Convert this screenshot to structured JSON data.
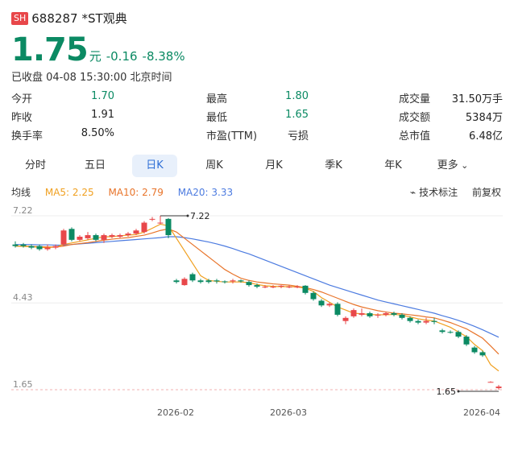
{
  "header": {
    "exchange": "SH",
    "code": "688287",
    "name": "*ST观典"
  },
  "quote": {
    "price": "1.75",
    "unit": "元",
    "change": "-0.16",
    "change_pct": "-8.38%",
    "status": "已收盘 04-08 15:30:00 北京时间"
  },
  "stats": [
    [
      {
        "label": "今开",
        "value": "1.70",
        "color": "green"
      },
      {
        "label": "最高",
        "value": "1.80",
        "color": "green"
      },
      {
        "label": "成交量",
        "value": "31.50万手",
        "color": "dark"
      }
    ],
    [
      {
        "label": "昨收",
        "value": "1.91",
        "color": "dark"
      },
      {
        "label": "最低",
        "value": "1.65",
        "color": "green"
      },
      {
        "label": "成交额",
        "value": "5384万",
        "color": "dark"
      }
    ],
    [
      {
        "label": "换手率",
        "value": "8.50%",
        "color": "dark"
      },
      {
        "label": "市盈(TTM)",
        "value": "亏损",
        "color": "dark"
      },
      {
        "label": "总市值",
        "value": "6.48亿",
        "color": "dark"
      }
    ]
  ],
  "tabs": [
    "分时",
    "五日",
    "日K",
    "周K",
    "月K",
    "季K",
    "年K",
    "更多"
  ],
  "active_tab": "日K",
  "ma": {
    "title": "均线",
    "ma5": "MA5: 2.25",
    "ma10": "MA10: 2.79",
    "ma20": "MA20: 3.33"
  },
  "tools": {
    "tech": "技术标注",
    "adjust": "前复权"
  },
  "colors": {
    "up": "#e8474a",
    "down": "#0b8a63",
    "ma5": "#f0a020",
    "ma10": "#e8742a",
    "ma20": "#4c7be0"
  },
  "chart_data": {
    "type": "candlestick",
    "y_ticks": [
      "7.22",
      "4.43",
      "1.65"
    ],
    "ylim": [
      1.65,
      7.22
    ],
    "x_ticks": [
      "2026-02",
      "2026-03",
      "2026-04"
    ],
    "high_label": "7.22",
    "low_label": "1.65",
    "candles": [
      {
        "o": 6.3,
        "c": 6.25,
        "h": 6.4,
        "l": 6.2
      },
      {
        "o": 6.3,
        "c": 6.25,
        "h": 6.35,
        "l": 6.2
      },
      {
        "o": 6.25,
        "c": 6.2,
        "h": 6.3,
        "l": 6.15
      },
      {
        "o": 6.25,
        "c": 6.15,
        "h": 6.3,
        "l": 6.1
      },
      {
        "o": 6.15,
        "c": 6.2,
        "h": 6.3,
        "l": 6.1
      },
      {
        "o": 6.2,
        "c": 6.25,
        "h": 6.3,
        "l": 6.15
      },
      {
        "o": 6.3,
        "c": 6.75,
        "h": 6.8,
        "l": 6.25
      },
      {
        "o": 6.8,
        "c": 6.45,
        "h": 6.85,
        "l": 6.4
      },
      {
        "o": 6.45,
        "c": 6.55,
        "h": 6.6,
        "l": 6.4
      },
      {
        "o": 6.5,
        "c": 6.6,
        "h": 6.7,
        "l": 6.45
      },
      {
        "o": 6.6,
        "c": 6.45,
        "h": 6.65,
        "l": 6.4
      },
      {
        "o": 6.45,
        "c": 6.6,
        "h": 6.65,
        "l": 6.35
      },
      {
        "o": 6.55,
        "c": 6.6,
        "h": 6.65,
        "l": 6.5
      },
      {
        "o": 6.55,
        "c": 6.6,
        "h": 6.65,
        "l": 6.5
      },
      {
        "o": 6.6,
        "c": 6.65,
        "h": 6.7,
        "l": 6.55
      },
      {
        "o": 6.65,
        "c": 6.75,
        "h": 6.8,
        "l": 6.6
      },
      {
        "o": 6.7,
        "c": 7.0,
        "h": 7.05,
        "l": 6.65
      },
      {
        "o": 7.1,
        "c": 7.12,
        "h": 7.18,
        "l": 7.05
      },
      {
        "o": 7.0,
        "c": 7.0,
        "h": 7.22,
        "l": 6.95
      },
      {
        "o": 7.12,
        "c": 6.6,
        "h": 7.15,
        "l": 6.5
      },
      {
        "o": 5.15,
        "c": 5.1,
        "h": 5.2,
        "l": 5.05
      },
      {
        "o": 5.0,
        "c": 5.2,
        "h": 5.25,
        "l": 4.98
      },
      {
        "o": 5.35,
        "c": 5.15,
        "h": 5.4,
        "l": 5.1
      },
      {
        "o": 5.15,
        "c": 5.1,
        "h": 5.2,
        "l": 5.05
      },
      {
        "o": 5.15,
        "c": 5.1,
        "h": 5.2,
        "l": 5.05
      },
      {
        "o": 5.15,
        "c": 5.12,
        "h": 5.2,
        "l": 5.05
      },
      {
        "o": 5.12,
        "c": 5.1,
        "h": 5.15,
        "l": 5.05
      },
      {
        "o": 5.12,
        "c": 5.15,
        "h": 5.2,
        "l": 5.05
      },
      {
        "o": 5.15,
        "c": 5.12,
        "h": 5.18,
        "l": 5.08
      },
      {
        "o": 5.1,
        "c": 5.0,
        "h": 5.15,
        "l": 4.95
      },
      {
        "o": 5.0,
        "c": 4.95,
        "h": 5.05,
        "l": 4.9
      },
      {
        "o": 4.95,
        "c": 4.95,
        "h": 5.0,
        "l": 4.9
      },
      {
        "o": 4.95,
        "c": 4.95,
        "h": 5.0,
        "l": 4.9
      },
      {
        "o": 4.95,
        "c": 4.98,
        "h": 5.0,
        "l": 4.9
      },
      {
        "o": 4.95,
        "c": 4.95,
        "h": 5.0,
        "l": 4.9
      },
      {
        "o": 4.95,
        "c": 4.95,
        "h": 5.0,
        "l": 4.9
      },
      {
        "o": 4.98,
        "c": 4.75,
        "h": 5.0,
        "l": 4.7
      },
      {
        "o": 4.75,
        "c": 4.55,
        "h": 4.8,
        "l": 4.5
      },
      {
        "o": 4.5,
        "c": 4.35,
        "h": 4.55,
        "l": 4.3
      },
      {
        "o": 4.35,
        "c": 4.4,
        "h": 4.45,
        "l": 4.3
      },
      {
        "o": 4.4,
        "c": 4.05,
        "h": 4.45,
        "l": 4.0
      },
      {
        "o": 3.85,
        "c": 3.95,
        "h": 4.0,
        "l": 3.75
      },
      {
        "o": 4.0,
        "c": 4.2,
        "h": 4.25,
        "l": 3.95
      },
      {
        "o": 4.05,
        "c": 4.1,
        "h": 4.25,
        "l": 4.0
      },
      {
        "o": 4.1,
        "c": 4.0,
        "h": 4.15,
        "l": 3.95
      },
      {
        "o": 4.05,
        "c": 4.05,
        "h": 4.1,
        "l": 3.95
      },
      {
        "o": 4.05,
        "c": 4.1,
        "h": 4.15,
        "l": 4.0
      },
      {
        "o": 4.1,
        "c": 4.05,
        "h": 4.15,
        "l": 4.0
      },
      {
        "o": 4.05,
        "c": 3.95,
        "h": 4.1,
        "l": 3.9
      },
      {
        "o": 3.95,
        "c": 3.85,
        "h": 4.0,
        "l": 3.8
      },
      {
        "o": 3.85,
        "c": 3.8,
        "h": 3.9,
        "l": 3.75
      },
      {
        "o": 3.8,
        "c": 3.85,
        "h": 3.95,
        "l": 3.75
      },
      {
        "o": 3.85,
        "c": 3.82,
        "h": 3.95,
        "l": 3.75
      },
      {
        "o": 3.55,
        "c": 3.5,
        "h": 3.6,
        "l": 3.45
      },
      {
        "o": 3.5,
        "c": 3.48,
        "h": 3.55,
        "l": 3.45
      },
      {
        "o": 3.5,
        "c": 3.35,
        "h": 3.55,
        "l": 3.3
      },
      {
        "o": 3.35,
        "c": 3.1,
        "h": 3.4,
        "l": 3.05
      },
      {
        "o": 3.0,
        "c": 2.85,
        "h": 3.05,
        "l": 2.8
      },
      {
        "o": 2.85,
        "c": 2.75,
        "h": 2.9,
        "l": 2.7
      },
      {
        "o": 1.9,
        "c": 1.9,
        "h": 1.92,
        "l": 1.88
      },
      {
        "o": 1.7,
        "c": 1.75,
        "h": 1.8,
        "l": 1.65
      }
    ],
    "ma5": [
      6.25,
      6.24,
      6.23,
      6.21,
      6.2,
      6.22,
      6.3,
      6.35,
      6.4,
      6.45,
      6.5,
      6.55,
      6.55,
      6.58,
      6.6,
      6.62,
      6.7,
      6.82,
      6.95,
      6.9,
      6.5,
      6.1,
      5.7,
      5.3,
      5.15,
      5.12,
      5.1,
      5.1,
      5.1,
      5.08,
      5.02,
      4.98,
      4.96,
      4.95,
      4.95,
      4.94,
      4.9,
      4.8,
      4.6,
      4.45,
      4.3,
      4.2,
      4.1,
      4.08,
      4.06,
      4.05,
      4.05,
      4.06,
      4.04,
      3.98,
      3.92,
      3.88,
      3.85,
      3.75,
      3.65,
      3.5,
      3.35,
      3.1,
      2.9,
      2.45,
      2.25
    ],
    "ma10": [
      6.25,
      6.25,
      6.24,
      6.23,
      6.22,
      6.22,
      6.25,
      6.3,
      6.33,
      6.36,
      6.4,
      6.44,
      6.47,
      6.5,
      6.52,
      6.56,
      6.6,
      6.67,
      6.75,
      6.8,
      6.7,
      6.5,
      6.3,
      6.1,
      5.9,
      5.7,
      5.5,
      5.35,
      5.22,
      5.15,
      5.1,
      5.07,
      5.04,
      5.02,
      5.0,
      4.96,
      4.92,
      4.86,
      4.78,
      4.68,
      4.58,
      4.48,
      4.38,
      4.3,
      4.24,
      4.18,
      4.14,
      4.1,
      4.08,
      4.05,
      4.02,
      3.98,
      3.95,
      3.88,
      3.8,
      3.7,
      3.6,
      3.45,
      3.3,
      3.05,
      2.79
    ],
    "ma20": [
      6.3,
      6.3,
      6.3,
      6.29,
      6.29,
      6.28,
      6.28,
      6.3,
      6.32,
      6.34,
      6.36,
      6.38,
      6.4,
      6.42,
      6.44,
      6.46,
      6.48,
      6.5,
      6.52,
      6.55,
      6.55,
      6.52,
      6.48,
      6.43,
      6.38,
      6.32,
      6.25,
      6.17,
      6.08,
      6.0,
      5.9,
      5.8,
      5.7,
      5.6,
      5.5,
      5.4,
      5.3,
      5.2,
      5.1,
      5.0,
      4.92,
      4.84,
      4.76,
      4.68,
      4.6,
      4.52,
      4.46,
      4.4,
      4.34,
      4.28,
      4.22,
      4.16,
      4.1,
      4.02,
      3.95,
      3.87,
      3.78,
      3.68,
      3.57,
      3.45,
      3.33
    ]
  }
}
